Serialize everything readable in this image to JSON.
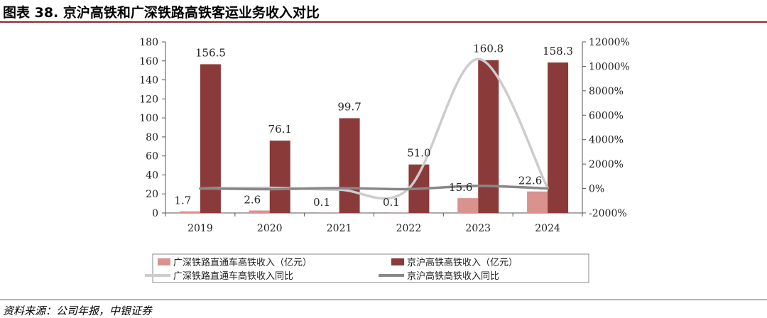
{
  "header": {
    "title": "图表 38. 京沪高铁和广深铁路高铁客运业务收入对比"
  },
  "footer": {
    "source": "资料来源：公司年报，中银证券"
  },
  "chart_data": {
    "type": "bar",
    "categories": [
      "2019",
      "2020",
      "2021",
      "2022",
      "2023",
      "2024"
    ],
    "series": [
      {
        "name": "广深铁路直通车高铁收入（亿元）",
        "type": "bar",
        "axis": "left",
        "color": "#d9928e",
        "values": [
          1.7,
          2.6,
          0.1,
          0.1,
          15.6,
          22.6
        ]
      },
      {
        "name": "京沪高铁高铁收入（亿元）",
        "type": "bar",
        "axis": "left",
        "color": "#8b3a3a",
        "values": [
          156.5,
          76.1,
          99.7,
          51.0,
          160.8,
          158.3
        ]
      },
      {
        "name": "广深铁路直通车高铁收入同比",
        "type": "line",
        "axis": "right",
        "color": "#cccccc",
        "values": [
          0,
          53,
          -96,
          -1,
          10600,
          45
        ]
      },
      {
        "name": "京沪高铁高铁收入同比",
        "type": "line",
        "axis": "right",
        "color": "#888888",
        "values": [
          0,
          -51,
          31,
          -49,
          215,
          -2
        ]
      }
    ],
    "data_labels_left": [
      "1.7",
      "2.6",
      "0.1",
      "0.1",
      "15.6",
      "22.6"
    ],
    "data_labels_right": [
      "156.5",
      "76.1",
      "99.7",
      "51.0",
      "160.8",
      "158.3"
    ],
    "ylim_left": [
      0,
      180
    ],
    "yticks_left": [
      "0",
      "20",
      "40",
      "60",
      "80",
      "100",
      "120",
      "140",
      "160",
      "180"
    ],
    "ylim_right": [
      -2000,
      12000
    ],
    "yticks_right": [
      "-2000%",
      "0%",
      "2000%",
      "4000%",
      "6000%",
      "8000%",
      "10000%",
      "12000%"
    ],
    "grid": false,
    "legend_position": "bottom"
  }
}
